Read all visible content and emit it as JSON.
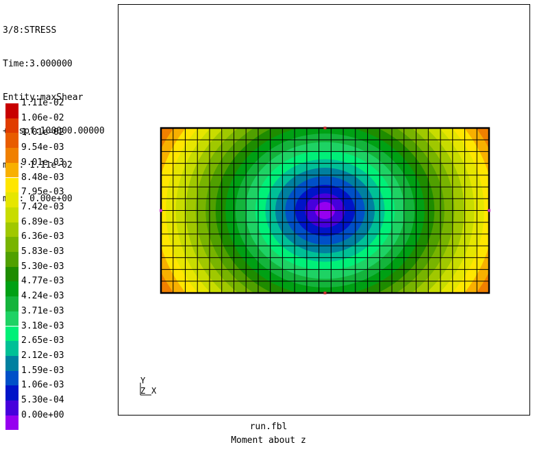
{
  "info": {
    "lines": [
      "3/8:STRESS",
      "Time:3.000000",
      "Entity:maxShear",
      "+Dispf:100000.00000",
      "max: 1.11e-02",
      "min: 0.00e+00"
    ]
  },
  "legend": {
    "labels": [
      "1.11e-02",
      "1.06e-02",
      "1.01e-02",
      "9.54e-03",
      "9.01e-03",
      "8.48e-03",
      "7.95e-03",
      "7.42e-03",
      "6.89e-03",
      "6.36e-03",
      "5.83e-03",
      "5.30e-03",
      "4.77e-03",
      "4.24e-03",
      "3.71e-03",
      "3.18e-03",
      "2.65e-03",
      "2.12e-03",
      "1.59e-03",
      "1.06e-03",
      "5.30e-04",
      "0.00e+00"
    ],
    "colors": [
      "#c80000",
      "#e03c00",
      "#e85c00",
      "#f08000",
      "#f8b000",
      "#ffe600",
      "#e6e600",
      "#c8dc00",
      "#a0c800",
      "#78b400",
      "#50a000",
      "#1e8c00",
      "#00a014",
      "#14b43c",
      "#1ed264",
      "#00f078",
      "#00c096",
      "#0080a0",
      "#0050c8",
      "#0014c8",
      "#4600dc",
      "#9600f0"
    ]
  },
  "axes": {
    "y": "Y",
    "z": "Z",
    "x": "X"
  },
  "footer": {
    "file": "run.fbl",
    "caption": "Moment about z"
  }
}
